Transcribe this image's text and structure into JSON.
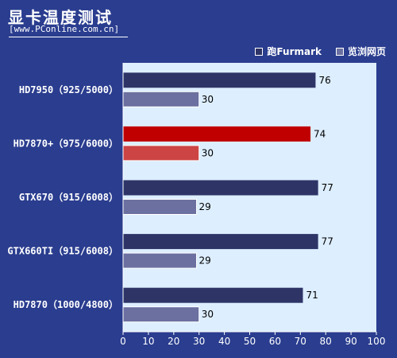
{
  "header": {
    "title": "显卡温度测试",
    "url": "[www.PConline.com.cn]"
  },
  "colors": {
    "background": "#2a3d8f",
    "plot_bg": "#ddeeff",
    "furmark": "#2e3466",
    "web": "#6b70a0",
    "furmark_highlight": "#c00000",
    "web_highlight": "#cc4444"
  },
  "chart_data": {
    "type": "bar",
    "orientation": "horizontal",
    "categories": [
      "HD7950（925/5000）",
      "HD7870+（975/6000）",
      "GTX670（915/6008）",
      "GTX660TI（915/6008）",
      "HD7870（1000/4800）"
    ],
    "series": [
      {
        "name": "跑Furmark",
        "values": [
          76,
          74,
          77,
          77,
          71
        ]
      },
      {
        "name": "览浏网页",
        "values": [
          30,
          30,
          29,
          29,
          30
        ]
      }
    ],
    "highlight_index": 1,
    "xlim": [
      0,
      100
    ],
    "xticks": [
      0,
      10,
      20,
      30,
      40,
      50,
      60,
      70,
      80,
      90,
      100
    ],
    "legend_position": "top-right",
    "grid": false
  }
}
